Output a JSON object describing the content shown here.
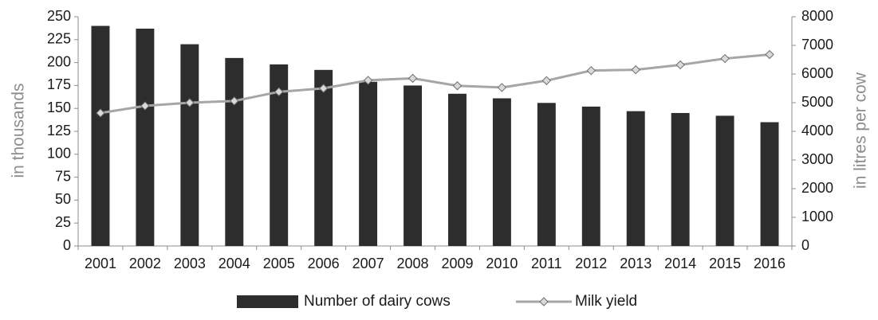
{
  "chart_data": {
    "type": "bar",
    "categories": [
      "2001",
      "2002",
      "2003",
      "2004",
      "2005",
      "2006",
      "2007",
      "2008",
      "2009",
      "2010",
      "2011",
      "2012",
      "2013",
      "2014",
      "2015",
      "2016"
    ],
    "series": [
      {
        "name": "Number of dairy cows",
        "type": "bar",
        "axis": "left",
        "color": "#2d2d2d",
        "values": [
          240,
          237,
          220,
          205,
          198,
          192,
          179,
          175,
          166,
          161,
          156,
          152,
          147,
          145,
          142,
          135
        ]
      },
      {
        "name": "Milk yield",
        "type": "line",
        "axis": "right",
        "color": "#a6a6a6",
        "marker": "diamond",
        "values": [
          4640,
          4890,
          5000,
          5060,
          5380,
          5500,
          5780,
          5850,
          5590,
          5530,
          5770,
          6120,
          6150,
          6320,
          6540,
          6680
        ]
      }
    ],
    "y_left": {
      "label": "in thousands",
      "ylim": [
        0,
        250
      ],
      "ticks": [
        "0",
        "25",
        "50",
        "75",
        "100",
        "125",
        "150",
        "175",
        "200",
        "225",
        "250"
      ]
    },
    "y_right": {
      "label": "in litres per cow",
      "ylim": [
        0,
        8000
      ],
      "ticks": [
        "0",
        "1000",
        "2000",
        "3000",
        "4000",
        "5000",
        "6000",
        "7000",
        "8000"
      ]
    },
    "xlabel": "",
    "grid": false,
    "legend": {
      "position": "bottom",
      "items": [
        {
          "label": "Number of dairy cows",
          "symbol": "bar"
        },
        {
          "label": "Milk yield",
          "symbol": "line-diamond"
        }
      ]
    }
  }
}
